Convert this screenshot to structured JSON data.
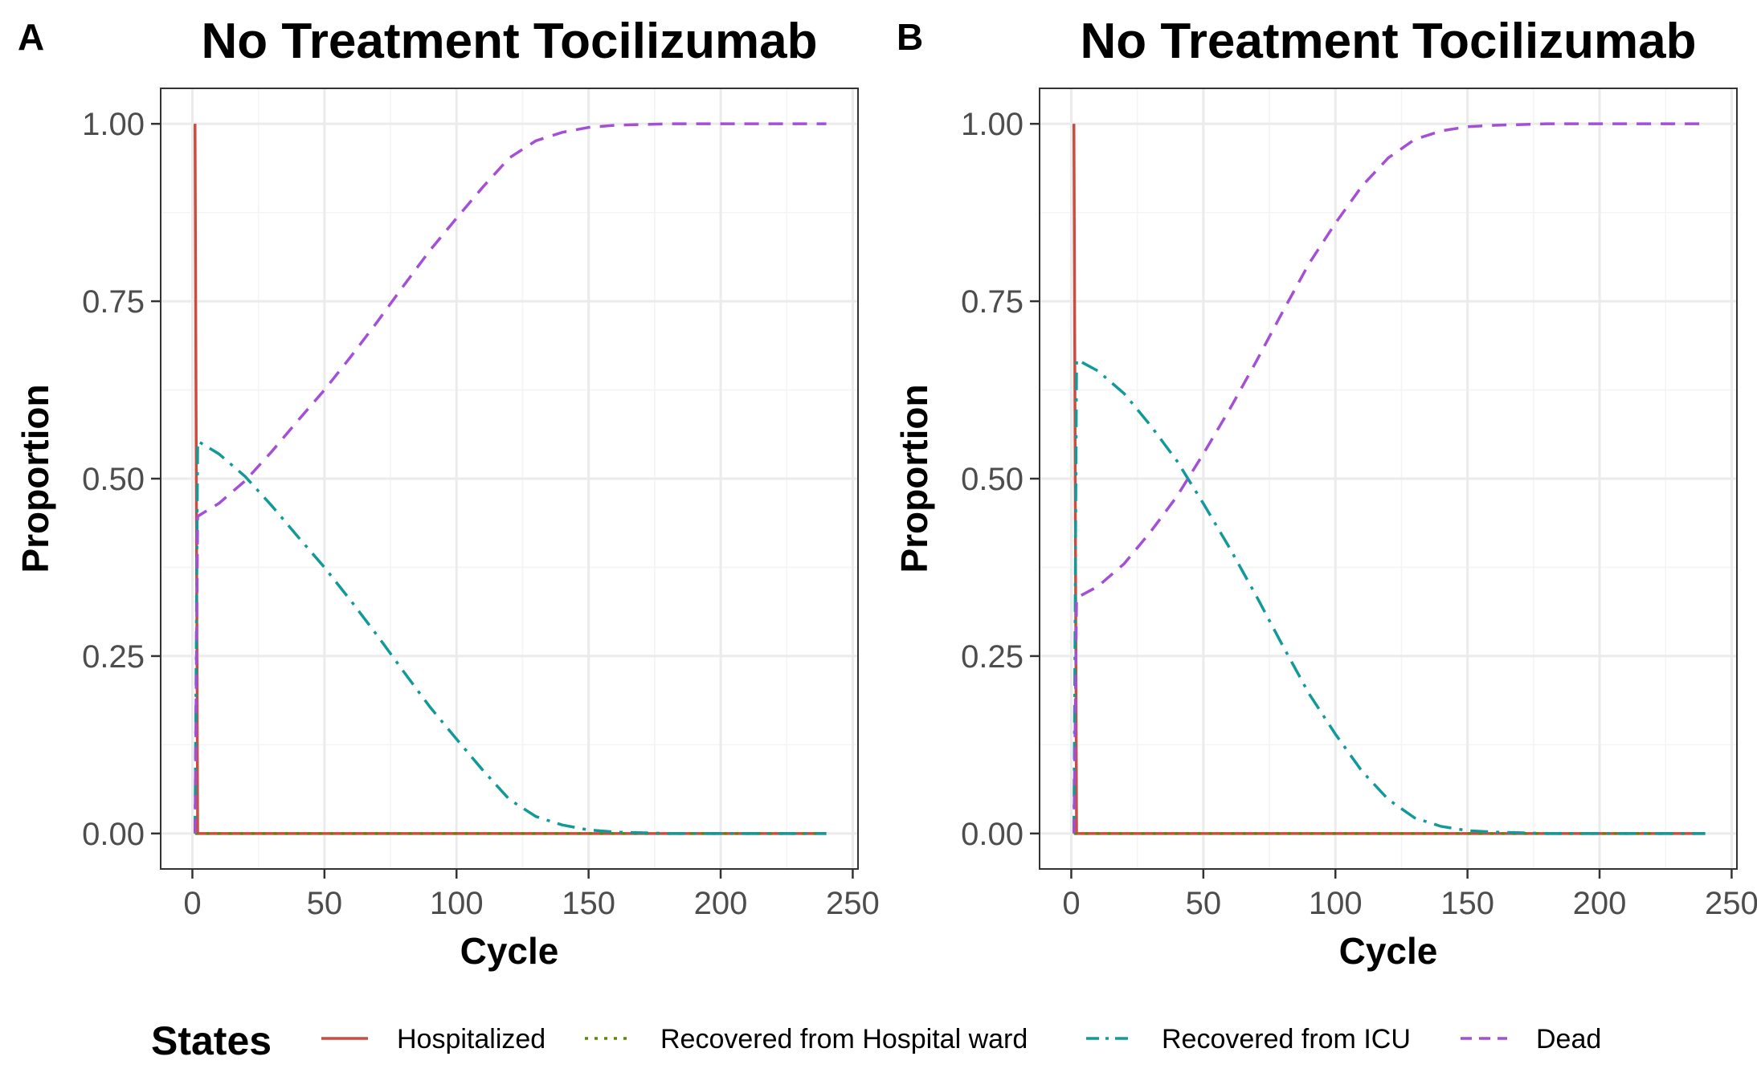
{
  "legend": {
    "title": "States",
    "entries": [
      {
        "name": "Hospitalized",
        "color": "#cc4c3f",
        "dash": "solid"
      },
      {
        "name": "Recovered from Hospital ward",
        "color": "#5b8a00",
        "dash": "dotted"
      },
      {
        "name": "Recovered from ICU",
        "color": "#12999a",
        "dash": "dotdash"
      },
      {
        "name": "Dead",
        "color": "#a34fd6",
        "dash": "dashed"
      }
    ]
  },
  "chart_data": [
    {
      "panel": "A",
      "type": "line",
      "title": "No Treatment Tocilizumab",
      "xlabel": "Cycle",
      "ylabel": "Proportion",
      "xlim": [
        -12,
        252
      ],
      "ylim": [
        -0.05,
        1.05
      ],
      "xticks": [
        0,
        50,
        100,
        150,
        200,
        250
      ],
      "xtick_labels": [
        "0",
        "50",
        "100",
        "150",
        "200",
        "250"
      ],
      "yticks": [
        0,
        0.25,
        0.5,
        0.75,
        1
      ],
      "ytick_labels": [
        "0.00",
        "0.25",
        "0.50",
        "0.75",
        "1.00"
      ],
      "grid": true,
      "legend_position": "bottom",
      "series": [
        {
          "name": "Hospitalized",
          "x": [
            1,
            2,
            240
          ],
          "y": [
            1.0,
            0.0,
            0.0
          ]
        },
        {
          "name": "Recovered from Hospital ward",
          "x": [
            1,
            2,
            240
          ],
          "y": [
            0.0,
            0.0,
            0.0
          ]
        },
        {
          "name": "Recovered from ICU",
          "x": [
            1,
            2,
            10,
            20,
            30,
            40,
            50,
            60,
            70,
            80,
            90,
            100,
            110,
            120,
            130,
            140,
            150,
            160,
            170,
            180,
            200,
            220,
            240
          ],
          "y": [
            0.0,
            0.553,
            0.535,
            0.503,
            0.462,
            0.418,
            0.375,
            0.328,
            0.279,
            0.228,
            0.178,
            0.133,
            0.089,
            0.048,
            0.024,
            0.012,
            0.005,
            0.002,
            0.001,
            0.0,
            0.0,
            0.0,
            0.0
          ]
        },
        {
          "name": "Dead",
          "x": [
            1,
            2,
            10,
            20,
            30,
            40,
            50,
            60,
            70,
            80,
            90,
            100,
            110,
            120,
            130,
            140,
            150,
            160,
            170,
            180,
            200,
            220,
            240
          ],
          "y": [
            0.0,
            0.447,
            0.465,
            0.497,
            0.538,
            0.582,
            0.625,
            0.672,
            0.721,
            0.772,
            0.822,
            0.867,
            0.911,
            0.952,
            0.976,
            0.988,
            0.995,
            0.998,
            0.999,
            1.0,
            1.0,
            1.0,
            1.0
          ]
        }
      ]
    },
    {
      "panel": "B",
      "type": "line",
      "title": "No Treatment Tocilizumab",
      "xlabel": "Cycle",
      "ylabel": "Proportion",
      "xlim": [
        -12,
        252
      ],
      "ylim": [
        -0.05,
        1.05
      ],
      "xticks": [
        0,
        50,
        100,
        150,
        200,
        250
      ],
      "xtick_labels": [
        "0",
        "50",
        "100",
        "150",
        "200",
        "250"
      ],
      "yticks": [
        0,
        0.25,
        0.5,
        0.75,
        1
      ],
      "ytick_labels": [
        "0.00",
        "0.25",
        "0.50",
        "0.75",
        "1.00"
      ],
      "grid": true,
      "legend_position": "bottom",
      "series": [
        {
          "name": "Hospitalized",
          "x": [
            1,
            2,
            240
          ],
          "y": [
            1.0,
            0.0,
            0.0
          ]
        },
        {
          "name": "Recovered from Hospital ward",
          "x": [
            1,
            2,
            240
          ],
          "y": [
            0.0,
            0.0,
            0.0
          ]
        },
        {
          "name": "Recovered from ICU",
          "x": [
            1,
            2,
            10,
            20,
            30,
            40,
            50,
            60,
            70,
            80,
            90,
            100,
            110,
            120,
            130,
            140,
            150,
            160,
            170,
            180,
            200,
            220,
            240
          ],
          "y": [
            0.0,
            0.668,
            0.652,
            0.62,
            0.575,
            0.525,
            0.465,
            0.402,
            0.335,
            0.265,
            0.197,
            0.14,
            0.088,
            0.048,
            0.022,
            0.01,
            0.004,
            0.002,
            0.001,
            0.0,
            0.0,
            0.0,
            0.0
          ]
        },
        {
          "name": "Dead",
          "x": [
            1,
            2,
            10,
            20,
            30,
            40,
            50,
            60,
            70,
            80,
            90,
            100,
            110,
            120,
            130,
            140,
            150,
            160,
            170,
            180,
            200,
            220,
            240
          ],
          "y": [
            0.0,
            0.332,
            0.348,
            0.38,
            0.425,
            0.475,
            0.535,
            0.598,
            0.665,
            0.735,
            0.803,
            0.86,
            0.912,
            0.952,
            0.978,
            0.99,
            0.996,
            0.998,
            0.999,
            1.0,
            1.0,
            1.0,
            1.0
          ]
        }
      ]
    }
  ]
}
